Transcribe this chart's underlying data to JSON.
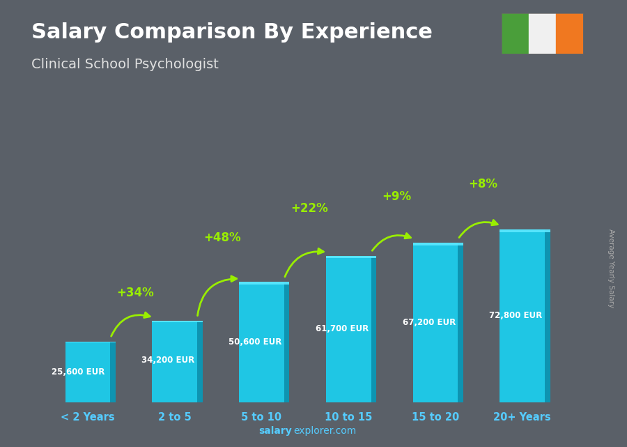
{
  "title": "Salary Comparison By Experience",
  "subtitle": "Clinical School Psychologist",
  "categories": [
    "< 2 Years",
    "2 to 5",
    "5 to 10",
    "10 to 15",
    "15 to 20",
    "20+ Years"
  ],
  "values": [
    25600,
    34200,
    50600,
    61700,
    67200,
    72800
  ],
  "labels": [
    "25,600 EUR",
    "34,200 EUR",
    "50,600 EUR",
    "61,700 EUR",
    "67,200 EUR",
    "72,800 EUR"
  ],
  "pct_changes": [
    "+34%",
    "+48%",
    "+22%",
    "+9%",
    "+8%"
  ],
  "bar_face_color": "#1ad0f0",
  "bar_side_color": "#0899b8",
  "bar_top_color": "#5de8ff",
  "bg_color": "#5a6068",
  "title_color": "#ffffff",
  "subtitle_color": "#e0e0e0",
  "label_color": "#ffffff",
  "pct_color": "#99ee00",
  "xlabel_color": "#55ccff",
  "footer_salary_color": "#55ccff",
  "footer_bold": "salary",
  "footer_normal": "explorer.com",
  "ylabel_text": "Average Yearly Salary",
  "flag_green": "#4a9e3a",
  "flag_white": "#f0f0f0",
  "flag_orange": "#f07820"
}
